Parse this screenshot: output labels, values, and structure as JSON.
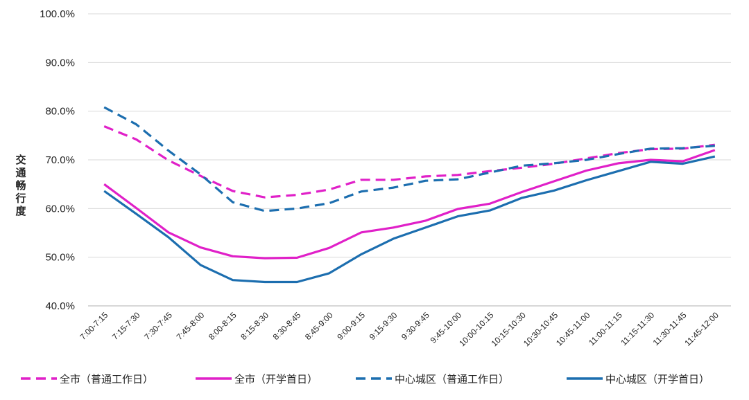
{
  "chart_data": {
    "type": "line",
    "title": "",
    "xlabel": "",
    "ylabel": "交通畅行度",
    "ylim": [
      40,
      100
    ],
    "ytick_labels": [
      "100.0%",
      "90.0%",
      "80.0%",
      "70.0%",
      "60.0%",
      "50.0%",
      "40.0%"
    ],
    "ytick_values": [
      100,
      90,
      80,
      70,
      60,
      50,
      40
    ],
    "grid": "horizontal",
    "legend_position": "bottom",
    "categories": [
      "7:00-7:15",
      "7:15-7:30",
      "7:30-7:45",
      "7:45-8:00",
      "8:00-8:15",
      "8:15-8:30",
      "8:30-8:45",
      "8:45-9:00",
      "9:00-9:15",
      "9:15-9:30",
      "9:30-9:45",
      "9:45-10:00",
      "10:00-10:15",
      "10:15-10:30",
      "10:30-10:45",
      "10:45-11:00",
      "11:00-11:15",
      "11:15-11:30",
      "11:30-11:45",
      "11:45-12:00"
    ],
    "series": [
      {
        "name": "全市（普通工作日）",
        "color": "#e020c8",
        "dash": "dashed",
        "values": [
          76.9,
          74.2,
          69.9,
          66.7,
          63.6,
          62.3,
          62.8,
          63.9,
          65.9,
          65.9,
          66.6,
          66.9,
          67.7,
          68.4,
          69.2,
          70.3,
          71.4,
          72.2,
          72.3,
          73.1
        ]
      },
      {
        "name": "全市（开学首日）",
        "color": "#e020c8",
        "dash": "solid",
        "values": [
          65.0,
          60.1,
          55.1,
          52.0,
          50.2,
          49.8,
          49.9,
          51.9,
          55.1,
          56.1,
          57.5,
          59.9,
          61.0,
          63.4,
          65.6,
          67.8,
          69.3,
          70.0,
          69.7,
          72.0
        ]
      },
      {
        "name": "中心城区（普通工作日）",
        "color": "#1c6eaf",
        "dash": "dashed",
        "values": [
          80.8,
          77.3,
          71.9,
          67.0,
          61.3,
          59.5,
          60.0,
          61.1,
          63.5,
          64.3,
          65.7,
          66.0,
          67.4,
          68.8,
          69.3,
          70.0,
          71.2,
          72.3,
          72.4,
          72.9
        ]
      },
      {
        "name": "中心城区（开学首日）",
        "color": "#1c6eaf",
        "dash": "solid",
        "values": [
          63.6,
          58.9,
          54.1,
          48.4,
          45.3,
          44.9,
          44.9,
          46.7,
          50.6,
          53.8,
          56.1,
          58.4,
          59.6,
          62.2,
          63.7,
          65.8,
          67.7,
          69.6,
          69.2,
          70.7
        ]
      }
    ]
  }
}
